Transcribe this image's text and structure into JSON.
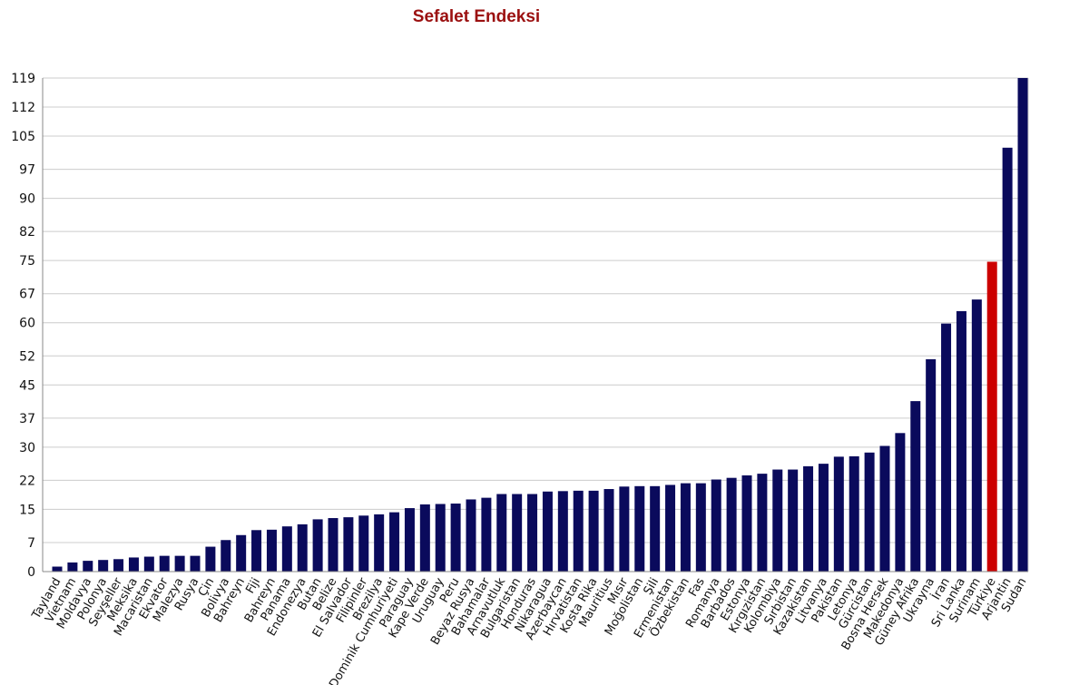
{
  "chart_data": {
    "type": "bar",
    "title": "Sefalet Endeksi",
    "xlabel": "",
    "ylabel": "",
    "ylim": [
      0,
      119
    ],
    "yticks": [
      0,
      7,
      15,
      22,
      30,
      37,
      45,
      52,
      60,
      67,
      75,
      82,
      90,
      97,
      105,
      112,
      119
    ],
    "grid": true,
    "legend": "none",
    "colors": {
      "bar": "#0a0a5c",
      "highlight": "#cc0000",
      "title": "#9b1010",
      "grid": "#cccccc"
    },
    "highlight_category": "Türkiye",
    "categories": [
      "Tayland",
      "Vietnam",
      "Moldavya",
      "Polonya",
      "Seyşeller",
      "Meksika",
      "Macaristan",
      "Ekvator",
      "Malezya",
      "Rusya",
      "Çin",
      "Bolivya",
      "Bahreyn",
      "Fiji",
      "Bahreyn",
      "Panama",
      "Endonezya",
      "Butan",
      "Belize",
      "El Salvador",
      "Filipinler",
      "Brezilya",
      "Dominik Cumhuriyeti",
      "Paraguay",
      "Kape Verde",
      "Uruguay",
      "Peru",
      "Beyaz Rusya",
      "Bahamalar",
      "Arnavutluk",
      "Bulgaristan",
      "Honduras",
      "Nikaragua",
      "Azerbaycan",
      "Hırvatistan",
      "Kosta Rika",
      "Mauritius",
      "Mısır",
      "Moğolistan",
      "Şili",
      "Ermenistan",
      "Özbekistan",
      "Fas",
      "Romanya",
      "Barbados",
      "Estonya",
      "Kırgızistan",
      "Kolombiya",
      "Sırbistan",
      "Kazakistan",
      "Litvanya",
      "Pakistan",
      "Letonya",
      "Gürcistan",
      "Bosna Hersek",
      "Makedonya",
      "Güney Afrika",
      "Ukrayna",
      "İran",
      "Sri Lanka",
      "Surinam",
      "Türkiye",
      "Arjantin",
      "Sudan"
    ],
    "values": [
      1.2,
      2.2,
      2.6,
      2.8,
      3.0,
      3.4,
      3.6,
      3.8,
      3.8,
      3.8,
      6.0,
      7.6,
      8.8,
      10.0,
      10.1,
      10.9,
      11.4,
      12.6,
      12.9,
      13.1,
      13.5,
      13.8,
      14.3,
      15.3,
      16.2,
      16.3,
      16.4,
      17.4,
      17.8,
      18.7,
      18.7,
      18.7,
      19.3,
      19.4,
      19.5,
      19.5,
      19.9,
      20.5,
      20.6,
      20.6,
      20.9,
      21.3,
      21.3,
      22.2,
      22.6,
      23.2,
      23.6,
      24.6,
      24.6,
      25.4,
      26.0,
      27.7,
      27.8,
      28.7,
      30.3,
      33.4,
      41.1,
      51.2,
      59.8,
      62.8,
      65.6,
      74.7,
      102.2,
      119.0
    ]
  }
}
